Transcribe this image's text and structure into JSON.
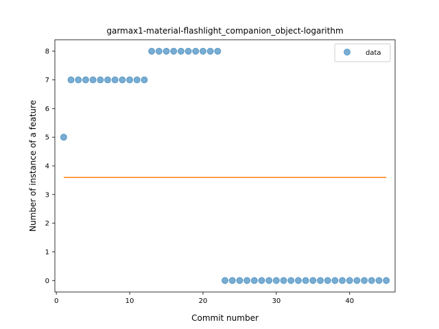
{
  "chart_data": {
    "type": "scatter",
    "title": "garmax1-material-flashlight_companion_object-logarithm",
    "xlabel": "Commit number",
    "ylabel": "Number of instance of a feature",
    "xlim": [
      -0.2,
      46.2
    ],
    "ylim": [
      -0.4,
      8.4
    ],
    "xticks": [
      0,
      10,
      20,
      30,
      40
    ],
    "yticks": [
      0,
      1,
      2,
      3,
      4,
      5,
      6,
      7,
      8
    ],
    "legend": {
      "position": "upper right",
      "entries": [
        "data"
      ]
    },
    "colors": {
      "points": "#1f77b4",
      "fit_line": "#ff7f0e"
    },
    "series": [
      {
        "name": "data",
        "kind": "scatter",
        "x": [
          1,
          2,
          3,
          4,
          5,
          6,
          7,
          8,
          9,
          10,
          11,
          12,
          13,
          14,
          15,
          16,
          17,
          18,
          19,
          20,
          21,
          22,
          23,
          24,
          25,
          26,
          27,
          28,
          29,
          30,
          31,
          32,
          33,
          34,
          35,
          36,
          37,
          38,
          39,
          40,
          41,
          42,
          43,
          44,
          45
        ],
        "y": [
          5,
          7,
          7,
          7,
          7,
          7,
          7,
          7,
          7,
          7,
          7,
          7,
          8,
          8,
          8,
          8,
          8,
          8,
          8,
          8,
          8,
          8,
          0,
          0,
          0,
          0,
          0,
          0,
          0,
          0,
          0,
          0,
          0,
          0,
          0,
          0,
          0,
          0,
          0,
          0,
          0,
          0,
          0,
          0,
          0
        ]
      },
      {
        "kind": "line",
        "x": [
          1,
          45
        ],
        "y": [
          3.6,
          3.6
        ]
      }
    ]
  }
}
